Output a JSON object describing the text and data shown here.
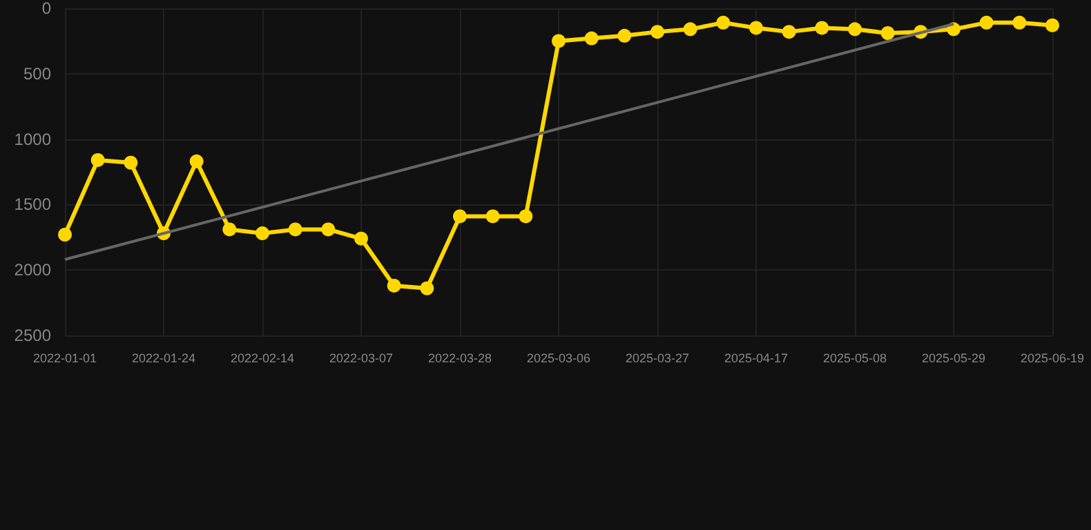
{
  "chart_data": {
    "type": "line",
    "categories": [
      "2022-01-01",
      null,
      null,
      "2022-01-24",
      null,
      null,
      "2022-02-14",
      null,
      null,
      "2022-03-07",
      null,
      null,
      "2022-03-28",
      null,
      null,
      "2025-03-06",
      null,
      null,
      "2025-03-27",
      null,
      null,
      "2025-04-17",
      null,
      null,
      "2025-05-08",
      null,
      null,
      "2025-05-29",
      null,
      null,
      "2025-06-19"
    ],
    "series": [
      {
        "color": "#ffd700",
        "marker": "circle",
        "values": [
          1730,
          1160,
          1180,
          1720,
          1170,
          1690,
          1720,
          1690,
          1690,
          1760,
          2120,
          2140,
          1590,
          1590,
          1590,
          250,
          230,
          210,
          180,
          160,
          110,
          150,
          180,
          150,
          160,
          190,
          180,
          160,
          110,
          110,
          130
        ]
      },
      {
        "type": "line",
        "color": "#666666",
        "marker": "none",
        "values": [
          1920,
          null,
          null,
          null,
          null,
          null,
          null,
          null,
          null,
          null,
          null,
          null,
          null,
          null,
          null,
          null,
          null,
          null,
          null,
          null,
          null,
          null,
          null,
          null,
          null,
          null,
          null,
          120,
          null,
          null,
          null
        ]
      }
    ],
    "ylim": [
      2500,
      0
    ],
    "yticks": [
      0,
      500,
      1000,
      1500,
      2000,
      2500
    ],
    "grid": true
  }
}
